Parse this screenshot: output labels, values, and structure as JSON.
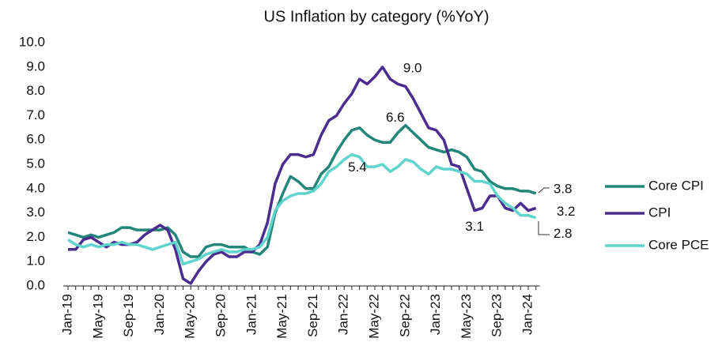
{
  "chart_data": {
    "type": "line",
    "title": "US Inflation by category (%YoY)",
    "categories": [
      "Jan-19",
      null,
      null,
      null,
      "May-19",
      null,
      null,
      null,
      "Sep-19",
      null,
      null,
      null,
      "Jan-20",
      null,
      null,
      null,
      "May-20",
      null,
      null,
      null,
      "Sep-20",
      null,
      null,
      null,
      "Jan-21",
      null,
      null,
      null,
      "May-21",
      null,
      null,
      null,
      "Sep-21",
      null,
      null,
      null,
      "Jan-22",
      null,
      null,
      null,
      "May-22",
      null,
      null,
      null,
      "Sep-22",
      null,
      null,
      null,
      "Jan-23",
      null,
      null,
      null,
      "May-23",
      null,
      null,
      null,
      "Sep-23",
      null,
      null,
      null,
      "Jan-24",
      null
    ],
    "series": [
      {
        "name": "Core CPI",
        "color": "#23867a",
        "values": [
          2.2,
          2.1,
          2.0,
          2.1,
          2.0,
          2.1,
          2.2,
          2.4,
          2.4,
          2.3,
          2.3,
          2.3,
          2.3,
          2.4,
          2.1,
          1.4,
          1.2,
          1.2,
          1.6,
          1.7,
          1.7,
          1.6,
          1.6,
          1.6,
          1.4,
          1.3,
          1.6,
          3.0,
          3.8,
          4.5,
          4.3,
          4.0,
          4.0,
          4.6,
          4.9,
          5.5,
          6.0,
          6.4,
          6.5,
          6.2,
          6.0,
          5.9,
          5.9,
          6.3,
          6.6,
          6.3,
          6.0,
          5.7,
          5.6,
          5.5,
          5.6,
          5.5,
          5.3,
          4.8,
          4.7,
          4.3,
          4.1,
          4.0,
          4.0,
          3.9,
          3.9,
          3.8
        ],
        "value_labels": [
          null,
          null,
          null,
          null,
          null,
          null,
          null,
          null,
          null,
          null,
          null,
          null,
          null,
          null,
          null,
          null,
          null,
          null,
          null,
          null,
          null,
          null,
          null,
          null,
          null,
          null,
          null,
          null,
          null,
          null,
          null,
          null,
          null,
          null,
          null,
          null,
          null,
          null,
          null,
          null,
          null,
          null,
          null,
          null,
          "6.6",
          null,
          null,
          null,
          null,
          null,
          null,
          null,
          null,
          null,
          null,
          null,
          null,
          null,
          null,
          null,
          null,
          "3.8"
        ]
      },
      {
        "name": "CPI",
        "color": "#4b2c8f",
        "values": [
          1.5,
          1.5,
          1.9,
          2.0,
          1.8,
          1.6,
          1.8,
          1.7,
          1.7,
          1.8,
          2.1,
          2.3,
          2.5,
          2.3,
          1.5,
          0.3,
          0.1,
          0.6,
          1.0,
          1.3,
          1.4,
          1.2,
          1.2,
          1.4,
          1.4,
          1.7,
          2.6,
          4.2,
          5.0,
          5.4,
          5.4,
          5.3,
          5.4,
          6.2,
          6.8,
          7.0,
          7.5,
          7.9,
          8.5,
          8.3,
          8.6,
          9.0,
          8.5,
          8.3,
          8.2,
          7.7,
          7.1,
          6.5,
          6.4,
          6.0,
          5.0,
          4.9,
          4.0,
          3.1,
          3.2,
          3.7,
          3.7,
          3.2,
          3.1,
          3.4,
          3.1,
          3.2
        ],
        "value_labels": [
          null,
          null,
          null,
          null,
          null,
          null,
          null,
          null,
          null,
          null,
          null,
          null,
          null,
          null,
          null,
          null,
          null,
          null,
          null,
          null,
          null,
          null,
          null,
          null,
          null,
          null,
          null,
          null,
          null,
          null,
          null,
          null,
          null,
          null,
          null,
          null,
          null,
          null,
          null,
          null,
          null,
          "9.0",
          null,
          null,
          null,
          null,
          null,
          null,
          null,
          null,
          null,
          null,
          null,
          "3.1",
          null,
          null,
          null,
          null,
          null,
          null,
          null,
          "3.2"
        ]
      },
      {
        "name": "Core PCE",
        "color": "#5fd3cc",
        "values": [
          1.9,
          1.7,
          1.6,
          1.7,
          1.6,
          1.7,
          1.7,
          1.8,
          1.7,
          1.7,
          1.6,
          1.5,
          1.6,
          1.7,
          1.8,
          0.9,
          1.0,
          1.1,
          1.3,
          1.4,
          1.5,
          1.4,
          1.4,
          1.5,
          1.5,
          1.6,
          2.0,
          3.1,
          3.5,
          3.7,
          3.8,
          3.8,
          3.9,
          4.2,
          4.7,
          4.9,
          5.2,
          5.4,
          5.3,
          4.9,
          4.9,
          5.0,
          4.7,
          4.9,
          5.2,
          5.1,
          4.8,
          4.6,
          4.9,
          4.8,
          4.8,
          4.7,
          4.6,
          4.3,
          4.3,
          4.2,
          3.7,
          3.4,
          3.2,
          2.9,
          2.9,
          2.8
        ],
        "value_labels": [
          null,
          null,
          null,
          null,
          null,
          null,
          null,
          null,
          null,
          null,
          null,
          null,
          null,
          null,
          null,
          null,
          null,
          null,
          null,
          null,
          null,
          null,
          null,
          null,
          null,
          null,
          null,
          null,
          null,
          null,
          null,
          null,
          null,
          null,
          null,
          null,
          null,
          "5.4",
          null,
          null,
          null,
          null,
          null,
          null,
          null,
          null,
          null,
          null,
          null,
          null,
          null,
          null,
          null,
          null,
          null,
          null,
          null,
          null,
          null,
          null,
          null,
          "2.8"
        ]
      }
    ],
    "ylim": [
      0,
      10
    ],
    "yticks": [
      {
        "value": 0,
        "label": "0.0"
      },
      {
        "value": 1,
        "label": "1.0"
      },
      {
        "value": 2,
        "label": "2.0"
      },
      {
        "value": 3,
        "label": "3.0"
      },
      {
        "value": 4,
        "label": "4.0"
      },
      {
        "value": 5,
        "label": "5.0"
      },
      {
        "value": 6,
        "label": "6.0"
      },
      {
        "value": 7,
        "label": "7.0"
      },
      {
        "value": 8,
        "label": "8.0"
      },
      {
        "value": 9,
        "label": "9.0"
      },
      {
        "value": 10,
        "label": "10.0"
      }
    ],
    "legend": "right"
  }
}
